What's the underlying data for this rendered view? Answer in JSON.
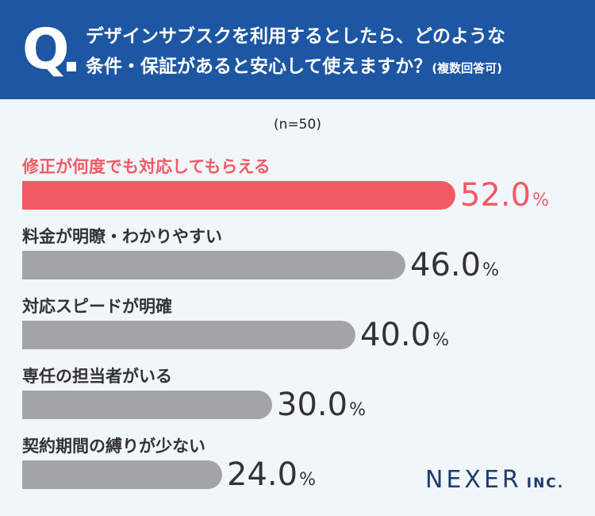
{
  "header": {
    "q_mark": "Q",
    "line1": "デザインサブスクを利用するとしたら、どのような",
    "line2": "条件・保証があると安心して使えますか？",
    "note": "(複数回答可)"
  },
  "sample_size": "(n=50)",
  "logo": {
    "main": "NEXER",
    "sub": "INC."
  },
  "chart_data": {
    "type": "bar",
    "orientation": "horizontal",
    "unit": "%",
    "xlim": [
      0,
      100
    ],
    "categories": [
      "修正が何度でも対応してもらえる",
      "料金が明瞭・わかりやすい",
      "対応スピードが明確",
      "専任の担当者がいる",
      "契約期間の縛りが少ない"
    ],
    "values": [
      52.0,
      46.0,
      40.0,
      30.0,
      24.0
    ],
    "value_labels": [
      "52.0",
      "46.0",
      "40.0",
      "30.0",
      "24.0"
    ],
    "highlight_index": 0,
    "colors": {
      "highlight": "#f25a63",
      "default": "#a3a4a8",
      "header": "#1d56a3"
    }
  }
}
